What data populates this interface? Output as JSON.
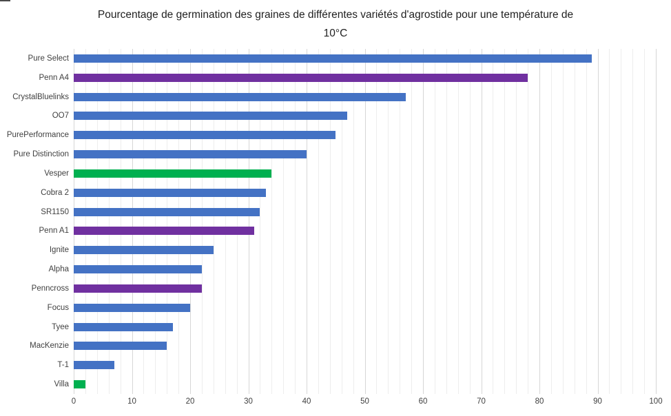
{
  "header": {
    "title_line1": "Pourcentage de germination des graines de différentes variétés d'agrostide pour une température de",
    "title_line2": "10°C"
  },
  "chart_data": {
    "type": "bar",
    "orientation": "horizontal",
    "title": "Pourcentage de germination des graines de différentes variétés d'agrostide pour une température de 10°C",
    "xlabel": "",
    "ylabel": "",
    "xlim": [
      0,
      100
    ],
    "x_ticks": [
      0,
      10,
      20,
      30,
      40,
      50,
      60,
      70,
      80,
      90,
      100
    ],
    "minor_grid_interval": 2,
    "major_grid_interval": 10,
    "grid": true,
    "legend": false,
    "categories": [
      "Pure Select",
      "Penn A4",
      "CrystalBluelinks",
      "OO7",
      "PurePerformance",
      "Pure Distinction",
      "Vesper",
      "Cobra 2",
      "SR1150",
      "Penn A1",
      "Ignite",
      "Alpha",
      "Penncross",
      "Focus",
      "Tyee",
      "MacKenzie",
      "T-1",
      "Villa"
    ],
    "values": [
      89,
      78,
      57,
      47,
      45,
      40,
      34,
      33,
      32,
      31,
      24,
      22,
      22,
      20,
      17,
      16,
      7,
      2
    ],
    "bar_color_keys": [
      "blue",
      "purple",
      "blue",
      "blue",
      "blue",
      "blue",
      "green",
      "blue",
      "blue",
      "purple",
      "blue",
      "blue",
      "purple",
      "blue",
      "blue",
      "blue",
      "blue",
      "green"
    ],
    "palette": {
      "blue": "#4472C4",
      "purple": "#7030A0",
      "green": "#00B050"
    }
  },
  "style": {
    "minor_grid_color": "#EDEDED",
    "major_grid_color": "#D6D6D6",
    "axis_label_color": "#404040",
    "title_color": "#1f1f1f",
    "background": "#FFFFFF"
  }
}
